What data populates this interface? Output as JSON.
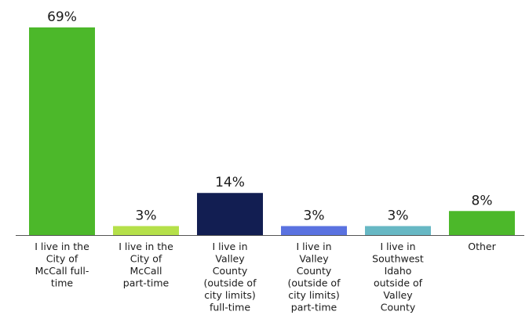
{
  "chart_data": {
    "type": "bar",
    "title": "",
    "xlabel": "",
    "ylabel": "",
    "ylim": [
      0,
      69
    ],
    "grid": false,
    "legend": "none",
    "categories": [
      [
        "I live in the",
        "City of",
        "McCall full-",
        "time"
      ],
      [
        "I live in the",
        "City of",
        "McCall",
        "part-time"
      ],
      [
        "I live in",
        "Valley",
        "County",
        "(outside of",
        "city limits)",
        "full-time"
      ],
      [
        "I live in",
        "Valley",
        "County",
        "(outside of",
        "city limits)",
        "part-time"
      ],
      [
        "I live in",
        "Southwest",
        "Idaho",
        "outside of",
        "Valley",
        "County"
      ],
      [
        "Other"
      ]
    ],
    "values": [
      69,
      3,
      14,
      3,
      3,
      8
    ],
    "value_labels": [
      "69%",
      "3%",
      "14%",
      "3%",
      "3%",
      "8%"
    ],
    "colors": [
      "#4cb82a",
      "#b5e04a",
      "#121e52",
      "#5a72e0",
      "#67b8c4",
      "#4cb82a"
    ],
    "axis_color": "#555555"
  }
}
